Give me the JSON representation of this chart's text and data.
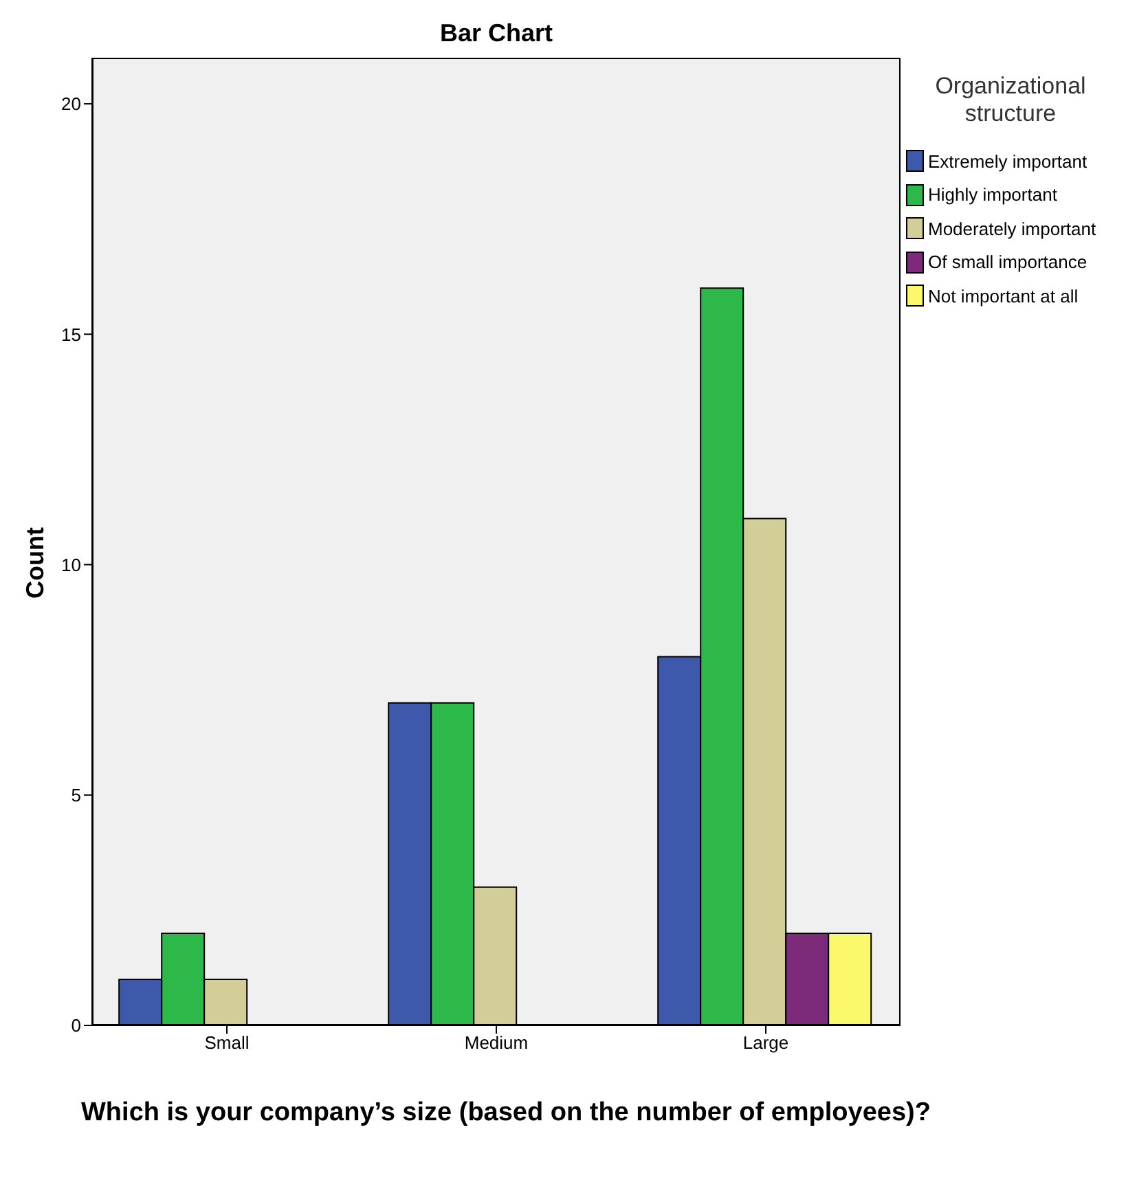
{
  "chart_data": {
    "type": "bar",
    "title": "Bar Chart",
    "xlabel": "Which is your company’s size (based on the number of employees)?",
    "ylabel": "Count",
    "legend_title": "Organizational structure",
    "categories": [
      "Small",
      "Medium",
      "Large"
    ],
    "series": [
      {
        "name": "Extremely important",
        "color": "#3e58ac",
        "values": [
          1,
          7,
          8
        ]
      },
      {
        "name": "Highly important",
        "color": "#2db84a",
        "values": [
          2,
          7,
          16
        ]
      },
      {
        "name": "Moderately important",
        "color": "#d3ce97",
        "values": [
          1,
          3,
          11
        ]
      },
      {
        "name": "Of small importance",
        "color": "#7d2a7a",
        "values": [
          null,
          null,
          2
        ]
      },
      {
        "name": "Not important at all",
        "color": "#fbf86c",
        "values": [
          null,
          null,
          2
        ]
      }
    ],
    "ylim": [
      0,
      21
    ],
    "yticks": [
      0,
      5,
      10,
      15,
      20
    ],
    "grid": false,
    "legend": "top right"
  }
}
